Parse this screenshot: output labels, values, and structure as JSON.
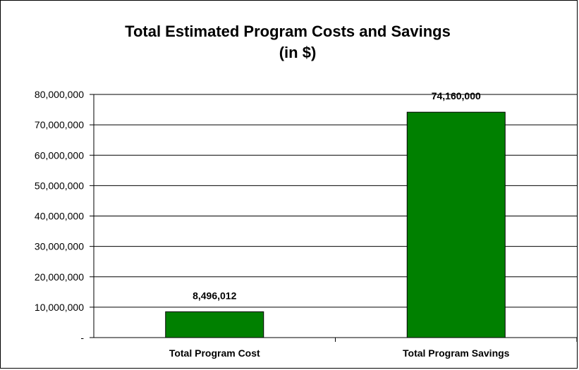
{
  "chart_data": {
    "type": "bar",
    "title": "Total Estimated Program Costs and Savings",
    "subtitle": "(in $)",
    "xlabel": "",
    "ylabel": "",
    "categories": [
      "Total Program Cost",
      "Total Program Savings"
    ],
    "values": [
      8496012,
      74160000
    ],
    "data_labels": [
      "8,496,012",
      "74,160,000"
    ],
    "ylim": [
      0,
      80000000
    ],
    "y_ticks": [
      0,
      10000000,
      20000000,
      30000000,
      40000000,
      50000000,
      60000000,
      70000000,
      80000000
    ],
    "y_tick_labels": [
      "-",
      "10,000,000",
      "20,000,000",
      "30,000,000",
      "40,000,000",
      "50,000,000",
      "60,000,000",
      "70,000,000",
      "80,000,000"
    ],
    "grid": true,
    "legend": "none",
    "colors": {
      "bar": "#008000",
      "bar_border": "#000000",
      "grid": "#000000",
      "background": "#ffffff"
    }
  }
}
